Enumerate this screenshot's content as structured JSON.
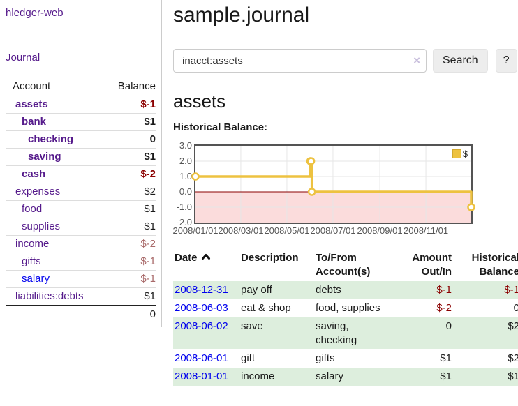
{
  "app": {
    "accent_purple": "#551a8b",
    "link_blue": "#0000ee",
    "negative_strong": "#8b0000",
    "negative_faded": "#a96a6a",
    "stripe_green": "#ddeedd"
  },
  "sidebar": {
    "brand": "hledger-web",
    "journal_link": "Journal",
    "accounts": {
      "header_account": "Account",
      "header_balance": "Balance",
      "rows": [
        {
          "account": "assets",
          "balance": "$-1",
          "indent": 0,
          "bold": true,
          "neg": "strong"
        },
        {
          "account": "bank",
          "balance": "$1",
          "indent": 1,
          "bold": true,
          "neg": null
        },
        {
          "account": "checking",
          "balance": "0",
          "indent": 2,
          "bold": true,
          "neg": null
        },
        {
          "account": "saving",
          "balance": "$1",
          "indent": 2,
          "bold": true,
          "neg": null
        },
        {
          "account": "cash",
          "balance": "$-2",
          "indent": 1,
          "bold": true,
          "neg": "strong"
        },
        {
          "account": "expenses",
          "balance": "$2",
          "indent": 0,
          "bold": false,
          "neg": null
        },
        {
          "account": "food",
          "balance": "$1",
          "indent": 1,
          "bold": false,
          "neg": null
        },
        {
          "account": "supplies",
          "balance": "$1",
          "indent": 1,
          "bold": false,
          "neg": null
        },
        {
          "account": "income",
          "balance": "$-2",
          "indent": 0,
          "bold": false,
          "neg": "faded"
        },
        {
          "account": "gifts",
          "balance": "$-1",
          "indent": 1,
          "bold": false,
          "neg": "faded"
        },
        {
          "account": "salary",
          "balance": "$-1",
          "indent": 1,
          "bold": false,
          "neg": "faded",
          "blue": true
        },
        {
          "account": "liabilities:debts",
          "balance": "$1",
          "indent": 0,
          "bold": false,
          "neg": null
        }
      ],
      "total": "0"
    }
  },
  "main": {
    "title": "sample.journal",
    "search": {
      "value": "inacct:assets",
      "clear_icon": "×",
      "button_label": "Search",
      "help_label": "?"
    },
    "heading": "assets",
    "chart_label": "Historical Balance:"
  },
  "chart_data": {
    "type": "line",
    "title": "Historical Balance",
    "step": true,
    "grid": true,
    "legend_position": "top-right",
    "x_start": "2008-01-01",
    "x_end": "2008-12-31",
    "x_ticks": [
      "2008/01/01",
      "2008/03/01",
      "2008/05/01",
      "2008/07/01",
      "2008/09/01",
      "2008/11/01"
    ],
    "y_ticks": [
      "3.0",
      "2.0",
      "1.0",
      "0.0",
      "-1.0",
      "-2.0"
    ],
    "ylim": [
      -2,
      3
    ],
    "series": [
      {
        "name": "$",
        "color": "#EDC240",
        "points": [
          [
            "2008-01-01",
            1
          ],
          [
            "2008-06-01",
            2
          ],
          [
            "2008-06-02",
            2
          ],
          [
            "2008-06-03",
            0
          ],
          [
            "2008-12-31",
            -1
          ]
        ]
      }
    ],
    "zero_line_color": "#8b0000",
    "negative_region_color": "#fbdcdc",
    "gridline_color": "#e6e6e6",
    "border_color": "#545454"
  },
  "register": {
    "headers": {
      "date": "Date",
      "description": "Description",
      "accounts": "To/From Account(s)",
      "amount": "Amount Out/In",
      "balance": "Historical Balance"
    },
    "rows": [
      {
        "date": "2008-12-31",
        "description": "pay off",
        "accounts": "debts",
        "amount": "$-1",
        "balance": "$-1",
        "amount_neg": true,
        "balance_neg": true,
        "shaded": true
      },
      {
        "date": "2008-06-03",
        "description": "eat & shop",
        "accounts": "food, supplies",
        "amount": "$-2",
        "balance": "0",
        "amount_neg": true,
        "balance_neg": false,
        "shaded": false
      },
      {
        "date": "2008-06-02",
        "description": "save",
        "accounts": "saving, checking",
        "amount": "0",
        "balance": "$2",
        "amount_neg": false,
        "balance_neg": false,
        "shaded": true
      },
      {
        "date": "2008-06-01",
        "description": "gift",
        "accounts": "gifts",
        "amount": "$1",
        "balance": "$2",
        "amount_neg": false,
        "balance_neg": false,
        "shaded": false
      },
      {
        "date": "2008-01-01",
        "description": "income",
        "accounts": "salary",
        "amount": "$1",
        "balance": "$1",
        "amount_neg": false,
        "balance_neg": false,
        "shaded": true
      }
    ]
  }
}
